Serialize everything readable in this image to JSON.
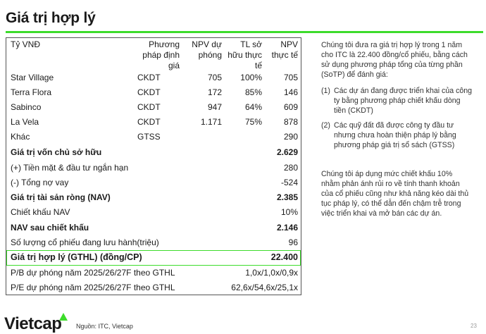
{
  "title": "Giá trị hợp lý",
  "table": {
    "headers": {
      "name": "Tỷ VNĐ",
      "method": "Phương pháp định giá",
      "npv_project": "NPV dự phóng",
      "ownership": "TL sở hữu thực tế",
      "npv_actual": "NPV thực tế"
    },
    "projects": [
      {
        "name": "Star Village",
        "method": "CKDT",
        "npv_project": "705",
        "ownership": "100%",
        "npv_actual": "705"
      },
      {
        "name": "Terra Flora",
        "method": "CKDT",
        "npv_project": "172",
        "ownership": "85%",
        "npv_actual": "146"
      },
      {
        "name": "Sabinco",
        "method": "CKDT",
        "npv_project": "947",
        "ownership": "64%",
        "npv_actual": "609"
      },
      {
        "name": "La Vela",
        "method": "CKDT",
        "npv_project": "1.171",
        "ownership": "75%",
        "npv_actual": "878"
      },
      {
        "name": "Khác",
        "method": "GTSS",
        "npv_project": "",
        "ownership": "",
        "npv_actual": "290"
      }
    ],
    "summary": [
      {
        "label": "Giá trị vốn chủ sở hữu",
        "value": "2.629",
        "bold": true
      },
      {
        "label": "(+) Tiền mặt & đầu tư ngắn hạn",
        "value": "280",
        "bold": false
      },
      {
        "label": "(-) Tổng nợ vay",
        "value": "-524",
        "bold": false
      },
      {
        "label": "Giá trị tài sản ròng (NAV)",
        "value": "2.385",
        "bold": true
      },
      {
        "label": "Chiết khấu NAV",
        "value": "10%",
        "bold": false
      },
      {
        "label": "NAV sau chiết khấu",
        "value": "2.146",
        "bold": true
      },
      {
        "label": "Số lượng cổ phiếu đang lưu hành(triệu)",
        "value": "96",
        "bold": false
      }
    ],
    "fair_value": {
      "label": "Giá trị hợp lý (GTHL) (đồng/CP)",
      "value": "22.400"
    },
    "multiples": [
      {
        "label": "P/B dự phóng năm 2025/26/27F theo GTHL",
        "value": "1,0x/1,0x/0,9x"
      },
      {
        "label": "P/E dự phóng năm 2025/26/27F theo GTHL",
        "value": "62,6x/54,6x/25,1x"
      }
    ]
  },
  "commentary": {
    "intro": "Chúng tôi đưa ra giá trị hợp lý trong 1 năm cho ITC là 22.400 đồng/cổ phiếu, bằng cách sử dụng phương pháp tổng của từng phần (SoTP) để đánh giá:",
    "items": [
      {
        "num": "(1)",
        "text": "Các dự án đang được triển khai của công ty bằng phương pháp chiết khấu dòng tiền (CKDT)"
      },
      {
        "num": "(2)",
        "text": "Các quỹ đất đã được công ty đầu tư nhưng chưa hoàn thiện pháp lý bằng phương pháp giá trị sổ sách (GTSS)"
      }
    ],
    "discount": "Chúng tôi áp dụng mức chiết khấu 10% nhằm phản ánh rủi ro về tính thanh khoản của cổ phiếu cũng như khả năng kéo dài thủ tục pháp lý, có thể dẫn đến chậm trễ trong việc triển khai và mở bán các dự án."
  },
  "footer": {
    "logo": "Vietcap",
    "source": "Nguồn: ITC, Vietcap",
    "page": "23"
  },
  "colors": {
    "accent": "#3ddc2b",
    "text": "#1a1a1a"
  }
}
